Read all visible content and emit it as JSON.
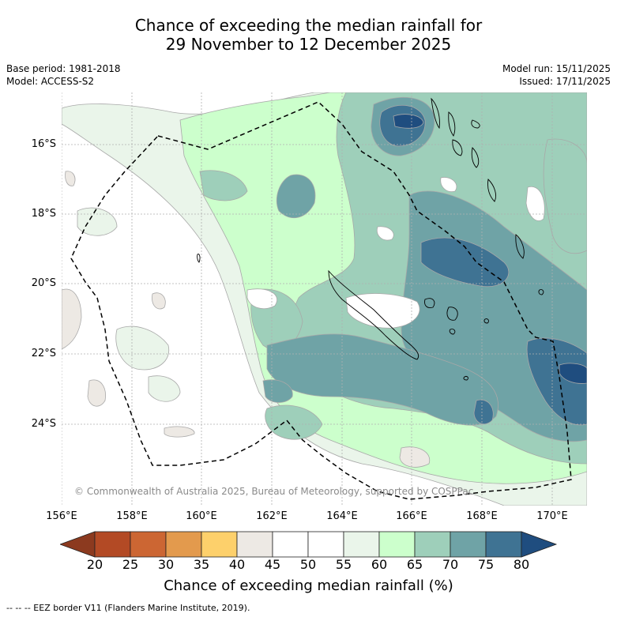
{
  "header": {
    "title_line1": "Chance of exceeding the median rainfall for",
    "title_line2": "29 November to 12 December 2025",
    "base_period": "Base period: 1981-2018",
    "model": "Model: ACCESS-S2",
    "model_run": "Model run: 15/11/2025",
    "issued": "Issued: 17/11/2025"
  },
  "map": {
    "lat_labels": [
      "16°S",
      "18°S",
      "20°S",
      "22°S",
      "24°S"
    ],
    "lon_labels": [
      "156°E",
      "158°E",
      "160°E",
      "162°E",
      "164°E",
      "166°E",
      "168°E",
      "170°E"
    ],
    "lon_range": [
      156,
      171
    ],
    "lat_range": [
      -26.3,
      -14.7
    ],
    "copyright": "© Commonwealth of Australia 2025, Bureau of Meteorology, supported by COSPPac"
  },
  "colorbar": {
    "ticks": [
      "20",
      "25",
      "30",
      "35",
      "40",
      "45",
      "50",
      "55",
      "60",
      "65",
      "70",
      "75",
      "80"
    ],
    "colors": [
      "#8c3a1f",
      "#b34a25",
      "#cc6633",
      "#e39a4d",
      "#fdd06b",
      "#ede9e4",
      "#ffffff",
      "#ffffff",
      "#eaf5ea",
      "#ccffcc",
      "#9ecfba",
      "#6fa3a6",
      "#3f7393",
      "#1f4d7f"
    ],
    "title": "Chance of exceeding median rainfall (%)"
  },
  "footnote": "--  --  -- EEZ border V11 (Flanders Marine Institute, 2019).",
  "level_colors": {
    "c40": "#ede9e4",
    "c60": "#eaf5ea",
    "c65": "#ccffcc",
    "c70": "#9ecfba",
    "c75": "#6fa3a6",
    "c80": "#3f7393",
    "c85": "#1f4d7f",
    "contour": "#a8a8a8",
    "grid": "#b0b0b0",
    "coast": "#000000",
    "eez": "#000000"
  }
}
